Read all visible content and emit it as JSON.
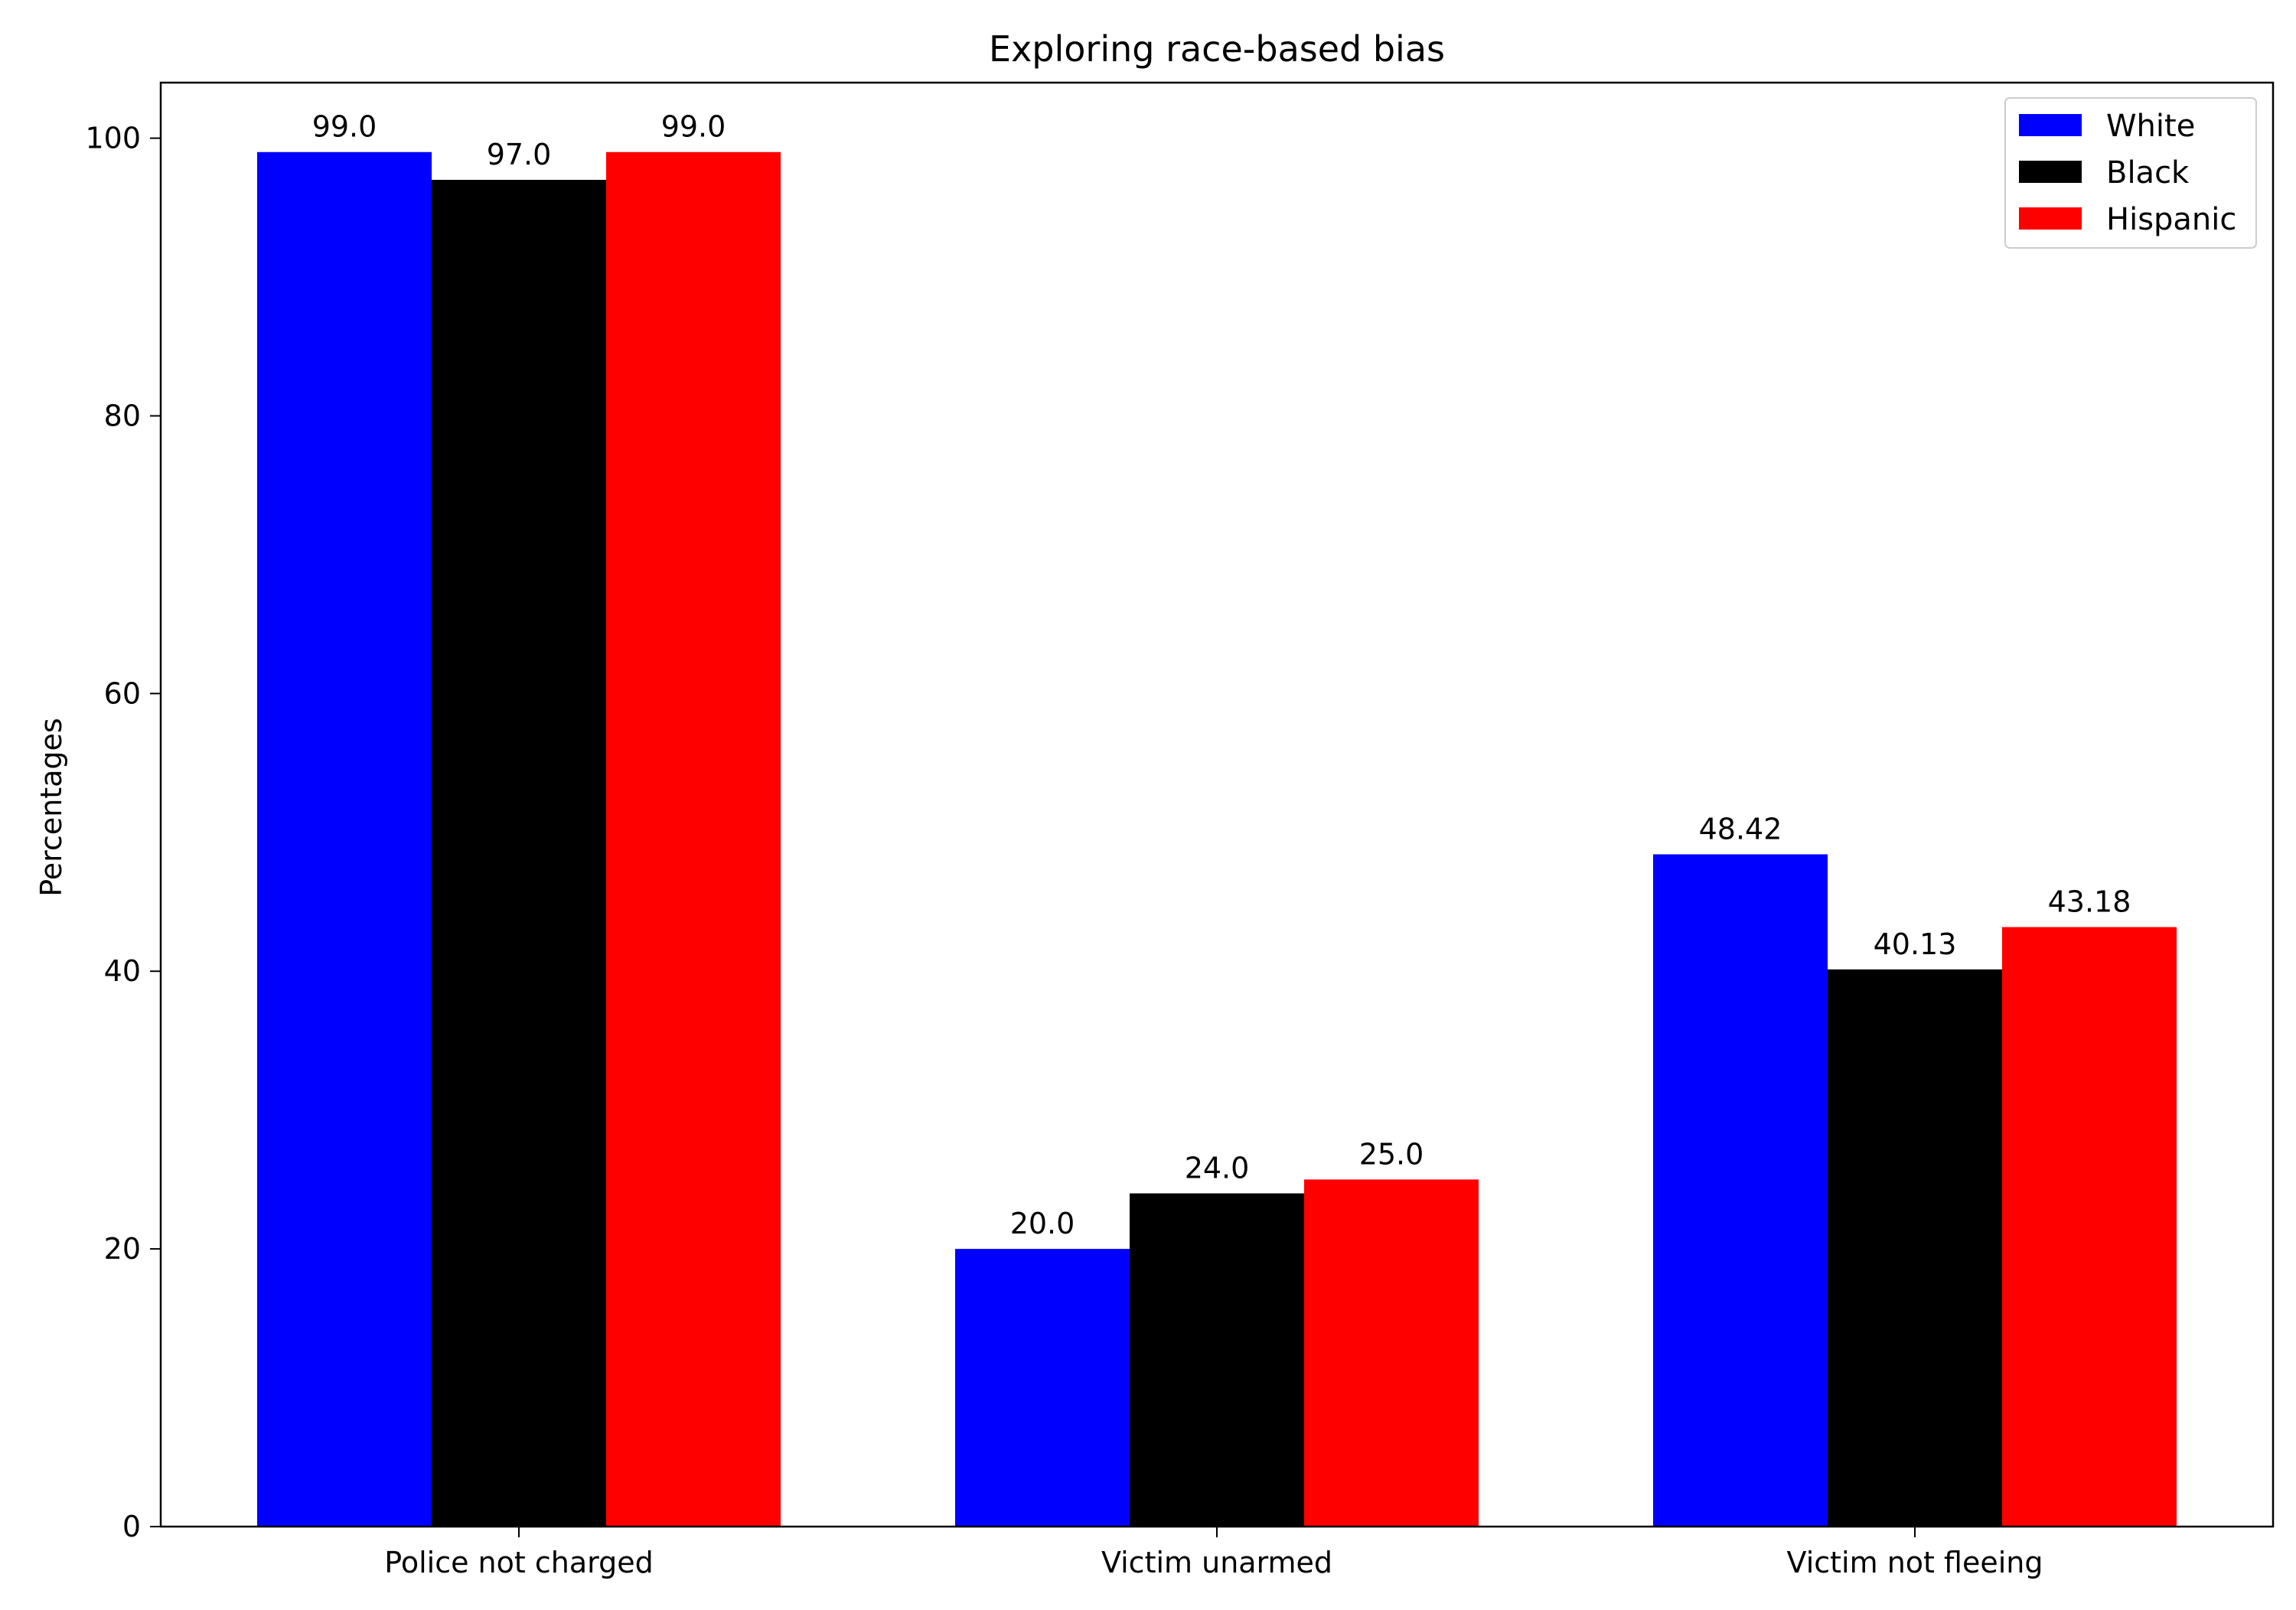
{
  "chart_data": {
    "type": "bar",
    "title": "Exploring race-based bias",
    "xlabel": "",
    "ylabel": "Percentages",
    "categories": [
      "Police not charged",
      "Victim unarmed",
      "Victim not fleeing"
    ],
    "series": [
      {
        "name": "White",
        "color": "#0000ff",
        "values": [
          99.0,
          20.0,
          48.42
        ],
        "labels": [
          "99.0",
          "20.0",
          "48.42"
        ]
      },
      {
        "name": "Black",
        "color": "#000000",
        "values": [
          97.0,
          24.0,
          40.13
        ],
        "labels": [
          "97.0",
          "24.0",
          "40.13"
        ]
      },
      {
        "name": "Hispanic",
        "color": "#ff0000",
        "values": [
          99.0,
          25.0,
          43.18
        ],
        "labels": [
          "99.0",
          "25.0",
          "43.18"
        ]
      }
    ],
    "ylim": [
      0,
      104
    ],
    "yticks": [
      0,
      20,
      40,
      60,
      80,
      100
    ],
    "grid": false,
    "legend_position": "top-right"
  }
}
